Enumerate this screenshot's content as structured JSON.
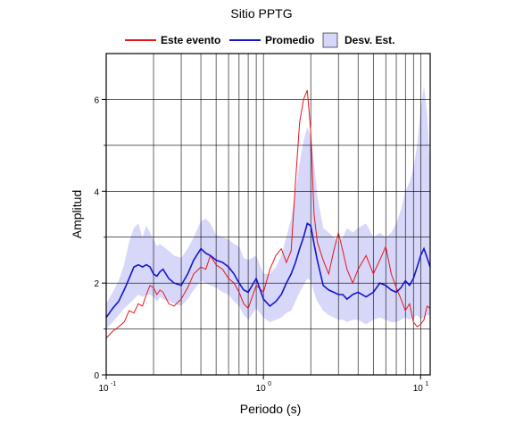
{
  "chart_data": {
    "type": "line",
    "title": "Sitio PPTG",
    "xlabel": "Periodo (s)",
    "ylabel": "Amplitud",
    "xscale": "log",
    "xlim": [
      0.1,
      11.5
    ],
    "ylim": [
      0,
      7
    ],
    "grid": true,
    "legend_position": "top",
    "yticks": [
      0,
      2,
      4,
      6
    ],
    "xticks": [
      {
        "base": "10",
        "exp": "-1",
        "value": 0.1
      },
      {
        "base": "10",
        "exp": "0",
        "value": 1
      },
      {
        "base": "10",
        "exp": "1",
        "value": 10
      }
    ],
    "legend": {
      "event": "Este evento",
      "mean": "Promedio",
      "band": "Desv. Est."
    },
    "colors": {
      "event": "#e8141c",
      "mean": "#1515cc",
      "band": "#d7d7fa"
    },
    "series": [
      {
        "name": "Este evento",
        "x": [
          0.1,
          0.11,
          0.12,
          0.13,
          0.14,
          0.15,
          0.16,
          0.17,
          0.18,
          0.19,
          0.2,
          0.21,
          0.22,
          0.23,
          0.25,
          0.27,
          0.3,
          0.33,
          0.36,
          0.4,
          0.43,
          0.46,
          0.5,
          0.55,
          0.6,
          0.65,
          0.7,
          0.75,
          0.8,
          0.9,
          1.0,
          1.1,
          1.2,
          1.3,
          1.4,
          1.5,
          1.6,
          1.7,
          1.8,
          1.9,
          2.0,
          2.1,
          2.2,
          2.4,
          2.6,
          2.8,
          3.0,
          3.2,
          3.4,
          3.7,
          4.0,
          4.5,
          5.0,
          5.5,
          6.0,
          6.5,
          7.0,
          7.5,
          8.0,
          8.5,
          9.0,
          9.5,
          10.0,
          10.5,
          11.0,
          11.5
        ],
        "y": [
          0.8,
          0.95,
          1.05,
          1.15,
          1.4,
          1.35,
          1.55,
          1.5,
          1.75,
          1.95,
          1.9,
          1.75,
          1.85,
          1.8,
          1.55,
          1.5,
          1.65,
          1.9,
          2.2,
          2.35,
          2.3,
          2.6,
          2.4,
          2.3,
          2.1,
          2.0,
          1.8,
          1.55,
          1.45,
          1.95,
          1.8,
          2.3,
          2.6,
          2.75,
          2.45,
          2.7,
          4.2,
          5.5,
          6.0,
          6.2,
          5.3,
          3.5,
          2.9,
          2.5,
          2.2,
          2.7,
          3.1,
          2.7,
          2.3,
          2.0,
          2.3,
          2.6,
          2.2,
          2.5,
          2.8,
          2.2,
          1.9,
          1.65,
          1.4,
          1.55,
          1.15,
          1.05,
          1.1,
          1.2,
          1.5,
          1.45
        ]
      },
      {
        "name": "Promedio",
        "x": [
          0.1,
          0.11,
          0.12,
          0.13,
          0.14,
          0.15,
          0.16,
          0.17,
          0.18,
          0.19,
          0.2,
          0.21,
          0.22,
          0.23,
          0.25,
          0.27,
          0.3,
          0.33,
          0.36,
          0.4,
          0.43,
          0.46,
          0.5,
          0.55,
          0.6,
          0.65,
          0.7,
          0.75,
          0.8,
          0.9,
          1.0,
          1.1,
          1.2,
          1.3,
          1.4,
          1.5,
          1.6,
          1.7,
          1.8,
          1.9,
          2.0,
          2.1,
          2.2,
          2.4,
          2.6,
          2.8,
          3.0,
          3.2,
          3.4,
          3.7,
          4.0,
          4.5,
          5.0,
          5.5,
          6.0,
          6.5,
          7.0,
          7.5,
          8.0,
          8.5,
          9.0,
          9.5,
          10.0,
          10.5,
          11.0,
          11.5
        ],
        "y": [
          1.25,
          1.45,
          1.6,
          1.85,
          2.1,
          2.35,
          2.4,
          2.35,
          2.4,
          2.35,
          2.2,
          2.15,
          2.25,
          2.3,
          2.1,
          2.0,
          1.95,
          2.2,
          2.5,
          2.75,
          2.65,
          2.6,
          2.5,
          2.45,
          2.35,
          2.2,
          2.0,
          1.85,
          1.8,
          2.1,
          1.65,
          1.5,
          1.6,
          1.75,
          2.0,
          2.2,
          2.45,
          2.75,
          3.0,
          3.3,
          3.25,
          2.85,
          2.5,
          1.95,
          1.85,
          1.8,
          1.75,
          1.75,
          1.65,
          1.75,
          1.8,
          1.7,
          1.8,
          2.0,
          1.95,
          1.85,
          1.8,
          1.9,
          2.05,
          1.95,
          2.1,
          2.35,
          2.6,
          2.75,
          2.55,
          2.35
        ]
      }
    ],
    "band": {
      "name": "Desv. Est.",
      "x": [
        0.1,
        0.11,
        0.12,
        0.13,
        0.14,
        0.15,
        0.16,
        0.17,
        0.18,
        0.19,
        0.2,
        0.21,
        0.22,
        0.23,
        0.25,
        0.27,
        0.3,
        0.33,
        0.36,
        0.4,
        0.43,
        0.46,
        0.5,
        0.55,
        0.6,
        0.65,
        0.7,
        0.75,
        0.8,
        0.9,
        1.0,
        1.1,
        1.2,
        1.3,
        1.4,
        1.5,
        1.6,
        1.7,
        1.8,
        1.9,
        2.0,
        2.1,
        2.2,
        2.4,
        2.6,
        2.8,
        3.0,
        3.2,
        3.4,
        3.7,
        4.0,
        4.5,
        5.0,
        5.5,
        6.0,
        6.5,
        7.0,
        7.5,
        8.0,
        8.5,
        9.0,
        9.5,
        10.0,
        10.5,
        11.0,
        11.5
      ],
      "upper": [
        1.55,
        1.8,
        2.05,
        2.4,
        2.9,
        3.2,
        3.3,
        3.0,
        3.25,
        3.1,
        2.95,
        2.8,
        2.85,
        2.8,
        2.7,
        2.6,
        2.55,
        2.75,
        3.0,
        3.35,
        3.4,
        3.3,
        3.05,
        3.0,
        2.95,
        2.85,
        2.8,
        2.55,
        2.5,
        2.6,
        2.2,
        2.2,
        2.35,
        2.6,
        3.0,
        3.4,
        4.0,
        4.6,
        5.1,
        5.4,
        5.2,
        4.6,
        3.9,
        3.2,
        3.1,
        3.0,
        2.9,
        3.0,
        3.2,
        3.1,
        3.2,
        3.3,
        3.0,
        3.1,
        3.0,
        3.1,
        3.3,
        3.6,
        4.0,
        4.2,
        4.5,
        5.0,
        5.8,
        6.3,
        5.7,
        4.5
      ],
      "lower": [
        1.0,
        1.15,
        1.3,
        1.45,
        1.55,
        1.65,
        1.75,
        1.7,
        1.75,
        1.75,
        1.7,
        1.6,
        1.7,
        1.65,
        1.6,
        1.55,
        1.5,
        1.65,
        1.85,
        2.05,
        2.0,
        1.95,
        1.9,
        1.8,
        1.75,
        1.6,
        1.5,
        1.3,
        1.2,
        1.45,
        1.25,
        1.15,
        1.2,
        1.25,
        1.35,
        1.4,
        1.6,
        1.8,
        1.95,
        2.1,
        2.05,
        1.8,
        1.6,
        1.4,
        1.3,
        1.25,
        1.2,
        1.2,
        1.15,
        1.2,
        1.2,
        1.1,
        1.2,
        1.25,
        1.2,
        1.15,
        1.15,
        1.2,
        1.25,
        1.2,
        1.25,
        1.3,
        1.2,
        1.25,
        1.3,
        1.3
      ]
    }
  }
}
